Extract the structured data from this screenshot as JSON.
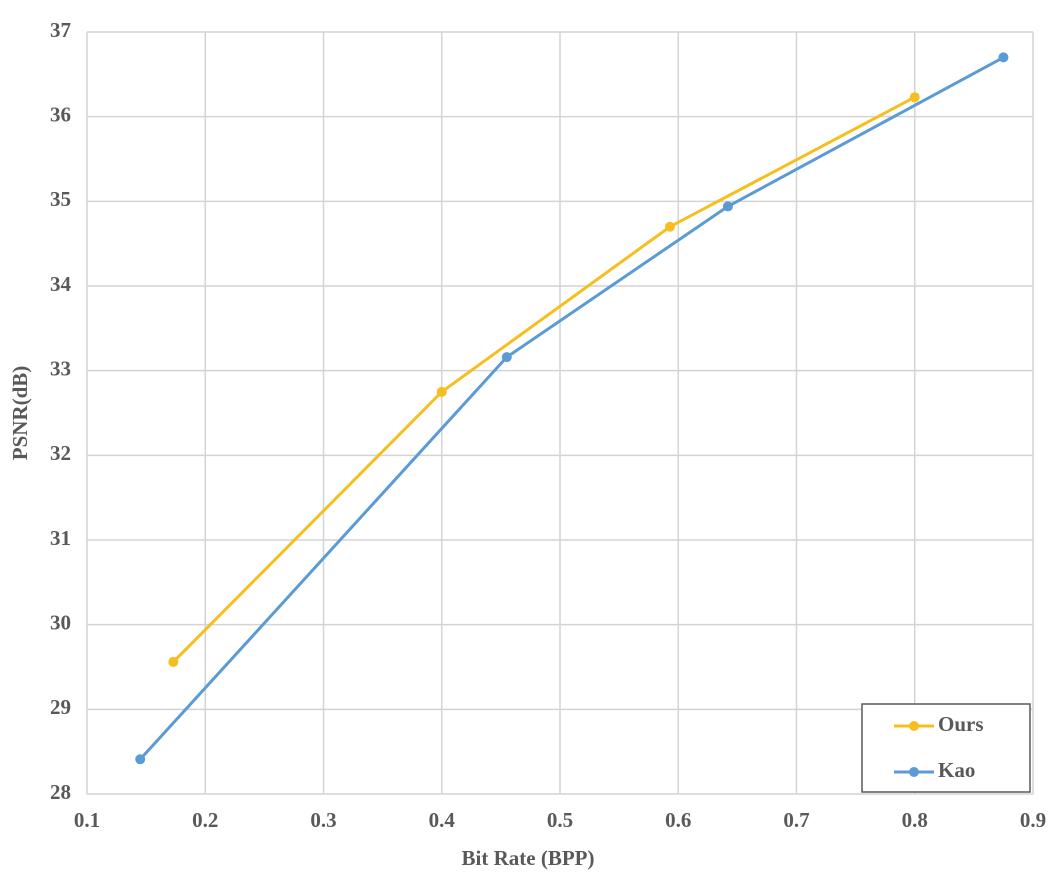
{
  "chart_data": {
    "type": "line",
    "x_label": "Bit Rate (BPP)",
    "y_label": "PSNR(dB)",
    "series": [
      {
        "name": "Ours",
        "color": "#f5bf1f",
        "x": [
          0.173,
          0.4,
          0.593,
          0.8
        ],
        "values": [
          29.56,
          32.75,
          34.7,
          36.23
        ]
      },
      {
        "name": "Kao",
        "color": "#5b9bd5",
        "x": [
          0.145,
          0.455,
          0.642,
          0.875
        ],
        "values": [
          28.41,
          33.16,
          34.94,
          36.7
        ]
      }
    ],
    "xlim": [
      0.1,
      0.9
    ],
    "xticks": [
      0.1,
      0.2,
      0.3,
      0.4,
      0.5,
      0.6,
      0.7,
      0.8,
      0.9
    ],
    "ylim": [
      28,
      37
    ],
    "yticks": [
      28,
      29,
      30,
      31,
      32,
      33,
      34,
      35,
      36,
      37
    ],
    "grid": true,
    "legend": "lower right"
  }
}
